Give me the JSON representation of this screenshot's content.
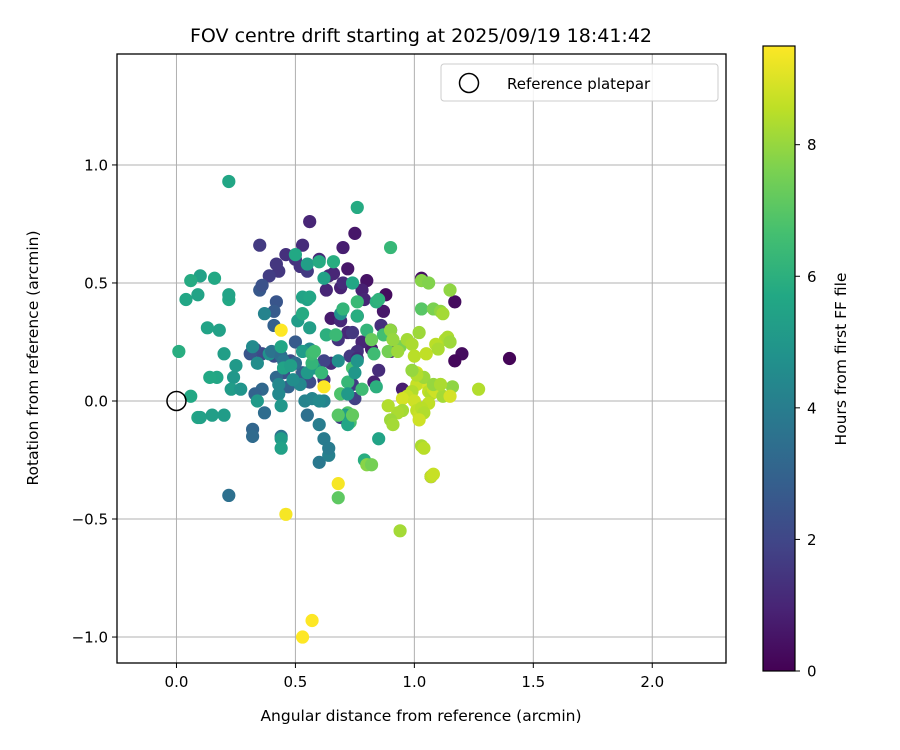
{
  "chart_data": {
    "type": "scatter",
    "title": "FOV centre drift starting at 2025/09/19 18:41:42",
    "xlabel": "Angular distance from reference (arcmin)",
    "ylabel": "Rotation from reference (arcmin)",
    "xlim": [
      -0.25,
      2.31
    ],
    "ylim": [
      -1.11,
      1.47
    ],
    "xticks": [
      0.0,
      0.5,
      1.0,
      1.5,
      2.0
    ],
    "xtick_labels": [
      "0.0",
      "0.5",
      "1.0",
      "1.5",
      "2.0"
    ],
    "yticks": [
      -1.0,
      -0.5,
      0.0,
      0.5,
      1.0
    ],
    "ytick_labels": [
      "−1.0",
      "−0.5",
      "0.0",
      "0.5",
      "1.0"
    ],
    "grid": true,
    "legend": {
      "position": "top-right",
      "entries": [
        "Reference platepar"
      ]
    },
    "reference_point": {
      "x": 0.0,
      "y": 0.0,
      "label": "Reference platepar"
    },
    "colorbar": {
      "label": "Hours from first FF file",
      "colormap": "viridis",
      "range": [
        0,
        9.5
      ],
      "ticks": [
        0,
        2,
        4,
        6,
        8
      ],
      "tick_labels": [
        "0",
        "2",
        "4",
        "6",
        "8"
      ]
    },
    "points": [
      [
        1.4,
        0.18,
        0.1
      ],
      [
        1.17,
        0.42,
        0.3
      ],
      [
        1.2,
        0.2,
        0.3
      ],
      [
        1.17,
        0.17,
        0.2
      ],
      [
        1.07,
        -0.32,
        0.2
      ],
      [
        1.03,
        0.52,
        0.4
      ],
      [
        0.9,
        0.3,
        0.3
      ],
      [
        0.88,
        0.45,
        0.3
      ],
      [
        0.8,
        0.51,
        0.5
      ],
      [
        0.75,
        0.71,
        0.6
      ],
      [
        0.7,
        0.65,
        0.8
      ],
      [
        0.56,
        0.76,
        1.0
      ],
      [
        0.65,
        0.35,
        0.7
      ],
      [
        0.69,
        0.48,
        0.9
      ],
      [
        0.72,
        0.56,
        0.6
      ],
      [
        0.78,
        0.47,
        0.9
      ],
      [
        0.82,
        0.22,
        0.7
      ],
      [
        0.87,
        0.38,
        0.6
      ],
      [
        0.83,
        0.08,
        0.9
      ],
      [
        0.78,
        0.25,
        1.0
      ],
      [
        0.72,
        0.29,
        1.1
      ],
      [
        0.76,
        0.36,
        0.8
      ],
      [
        0.63,
        0.47,
        1.0
      ],
      [
        0.6,
        0.6,
        1.1
      ],
      [
        0.53,
        0.66,
        1.2
      ],
      [
        0.46,
        0.62,
        1.3
      ],
      [
        0.5,
        0.6,
        1.4
      ],
      [
        0.43,
        0.55,
        1.5
      ],
      [
        0.35,
        0.66,
        1.6
      ],
      [
        0.39,
        0.53,
        1.7
      ],
      [
        0.42,
        0.58,
        1.5
      ],
      [
        0.52,
        0.57,
        1.4
      ],
      [
        0.55,
        0.55,
        1.6
      ],
      [
        0.64,
        0.53,
        1.2
      ],
      [
        0.76,
        0.21,
        1.3
      ],
      [
        0.65,
        0.16,
        1.2
      ],
      [
        0.62,
        0.09,
        1.4
      ],
      [
        0.68,
        0.26,
        1.4
      ],
      [
        0.69,
        0.34,
        1.1
      ],
      [
        0.66,
        0.54,
        1.0
      ],
      [
        0.7,
        0.5,
        1.2
      ],
      [
        0.74,
        0.29,
        1.5
      ],
      [
        0.73,
        0.19,
        1.6
      ],
      [
        0.76,
        0.18,
        1.1
      ],
      [
        0.79,
        0.43,
        1.0
      ],
      [
        0.86,
        0.32,
        1.3
      ],
      [
        0.9,
        0.21,
        1.0
      ],
      [
        0.95,
        0.05,
        0.8
      ],
      [
        0.85,
        0.13,
        1.2
      ],
      [
        0.74,
        0.07,
        1.7
      ],
      [
        0.69,
        -0.07,
        1.8
      ],
      [
        0.75,
        0.01,
        1.8
      ],
      [
        0.62,
        0.17,
        1.9
      ],
      [
        0.54,
        0.1,
        2.0
      ],
      [
        0.56,
        0.08,
        2.2
      ],
      [
        0.48,
        0.17,
        2.2
      ],
      [
        0.45,
        0.12,
        2.4
      ],
      [
        0.41,
        0.19,
        2.3
      ],
      [
        0.36,
        0.2,
        2.1
      ],
      [
        0.33,
        0.22,
        2.2
      ],
      [
        0.31,
        0.2,
        2.5
      ],
      [
        0.35,
        0.47,
        2.6
      ],
      [
        0.42,
        0.42,
        2.5
      ],
      [
        0.41,
        0.38,
        2.7
      ],
      [
        0.36,
        0.49,
        2.4
      ],
      [
        0.41,
        0.32,
        2.9
      ],
      [
        0.5,
        0.25,
        2.7
      ],
      [
        0.53,
        0.12,
        2.8
      ],
      [
        0.47,
        0.06,
        3.0
      ],
      [
        0.42,
        0.1,
        3.2
      ],
      [
        0.36,
        0.05,
        3.2
      ],
      [
        0.33,
        0.03,
        3.0
      ],
      [
        0.32,
        -0.12,
        3.1
      ],
      [
        0.32,
        -0.15,
        3.3
      ],
      [
        0.37,
        -0.05,
        3.4
      ],
      [
        0.22,
        -0.4,
        3.5
      ],
      [
        0.44,
        -0.15,
        3.6
      ],
      [
        0.55,
        -0.06,
        3.5
      ],
      [
        0.6,
        -0.26,
        3.8
      ],
      [
        0.62,
        -0.16,
        3.9
      ],
      [
        0.6,
        -0.1,
        4.0
      ],
      [
        0.64,
        -0.23,
        4.1
      ],
      [
        0.64,
        -0.2,
        3.9
      ],
      [
        0.62,
        0.0,
        4.2
      ],
      [
        0.54,
        0.0,
        4.2
      ],
      [
        0.52,
        0.07,
        4.4
      ],
      [
        0.49,
        0.09,
        4.6
      ],
      [
        0.43,
        0.03,
        4.4
      ],
      [
        0.39,
        0.2,
        4.8
      ],
      [
        0.37,
        0.37,
        4.2
      ],
      [
        0.4,
        0.21,
        3.6
      ],
      [
        0.44,
        0.19,
        3.4
      ],
      [
        0.45,
        0.17,
        3.7
      ],
      [
        0.5,
        0.16,
        3.3
      ],
      [
        0.56,
        0.22,
        4.5
      ],
      [
        0.58,
        0.14,
        5.0
      ],
      [
        0.55,
        0.12,
        5.1
      ],
      [
        0.53,
        0.21,
        5.2
      ],
      [
        0.56,
        0.31,
        5.3
      ],
      [
        0.55,
        0.43,
        5.4
      ],
      [
        0.51,
        0.34,
        5.2
      ],
      [
        0.53,
        0.44,
        5.5
      ],
      [
        0.56,
        0.44,
        5.6
      ],
      [
        0.55,
        0.58,
        5.3
      ],
      [
        0.5,
        0.62,
        5.7
      ],
      [
        0.6,
        0.59,
        5.8
      ],
      [
        0.66,
        0.59,
        5.9
      ],
      [
        0.62,
        0.52,
        5.4
      ],
      [
        0.74,
        0.5,
        5.6
      ],
      [
        0.76,
        0.82,
        5.8
      ],
      [
        0.84,
        0.42,
        6.0
      ],
      [
        0.85,
        0.43,
        6.1
      ],
      [
        0.9,
        0.65,
        6.3
      ],
      [
        0.76,
        0.42,
        6.4
      ],
      [
        0.8,
        0.3,
        6.2
      ],
      [
        0.83,
        0.2,
        6.5
      ],
      [
        0.87,
        0.28,
        6.6
      ],
      [
        0.78,
        0.05,
        6.5
      ],
      [
        0.74,
        0.14,
        6.7
      ],
      [
        0.72,
        0.08,
        6.3
      ],
      [
        0.69,
        0.03,
        6.8
      ],
      [
        0.72,
        -0.05,
        6.9
      ],
      [
        0.73,
        -0.09,
        6.7
      ],
      [
        0.68,
        -0.41,
        7.1
      ],
      [
        0.63,
        0.28,
        6.0
      ],
      [
        0.57,
        0.16,
        6.2
      ],
      [
        0.57,
        0.2,
        6.5
      ],
      [
        0.53,
        0.37,
        5.8
      ],
      [
        0.44,
        0.23,
        5.6
      ],
      [
        0.45,
        0.14,
        5.5
      ],
      [
        0.48,
        0.15,
        5.3
      ],
      [
        0.44,
        -0.02,
        5.0
      ],
      [
        0.44,
        -0.16,
        5.2
      ],
      [
        0.44,
        -0.2,
        5.4
      ],
      [
        0.34,
        0.0,
        5.1
      ],
      [
        0.24,
        0.1,
        5.0
      ],
      [
        0.25,
        0.15,
        5.1
      ],
      [
        0.23,
        0.05,
        5.2
      ],
      [
        0.22,
        0.43,
        5.7
      ],
      [
        0.22,
        0.45,
        5.5
      ],
      [
        0.22,
        0.93,
        5.6
      ],
      [
        0.16,
        0.52,
        5.7
      ],
      [
        0.18,
        0.3,
        5.4
      ],
      [
        0.2,
        0.2,
        5.3
      ],
      [
        0.17,
        0.1,
        5.6
      ],
      [
        0.14,
        0.1,
        5.7
      ],
      [
        0.13,
        0.31,
        5.5
      ],
      [
        0.1,
        0.53,
        5.4
      ],
      [
        0.09,
        0.45,
        5.5
      ],
      [
        0.06,
        0.51,
        5.8
      ],
      [
        0.04,
        0.43,
        5.6
      ],
      [
        0.01,
        0.21,
        5.9
      ],
      [
        0.06,
        0.02,
        5.7
      ],
      [
        0.09,
        -0.07,
        5.6
      ],
      [
        0.1,
        -0.07,
        5.4
      ],
      [
        0.15,
        -0.06,
        5.3
      ],
      [
        0.2,
        -0.06,
        5.2
      ],
      [
        0.27,
        0.05,
        4.9
      ],
      [
        0.32,
        0.23,
        4.5
      ],
      [
        0.34,
        0.16,
        4.6
      ],
      [
        0.43,
        0.07,
        4.4
      ],
      [
        0.57,
        0.01,
        4.3
      ],
      [
        0.6,
        0.0,
        4.5
      ],
      [
        0.68,
        0.17,
        4.6
      ],
      [
        0.69,
        0.37,
        4.8
      ],
      [
        0.76,
        0.17,
        4.9
      ],
      [
        0.75,
        0.12,
        5.0
      ],
      [
        0.72,
        0.03,
        5.1
      ],
      [
        0.71,
        -0.06,
        5.3
      ],
      [
        0.72,
        -0.1,
        5.6
      ],
      [
        0.79,
        -0.25,
        5.9
      ],
      [
        0.85,
        -0.16,
        5.5
      ],
      [
        0.84,
        0.06,
        6.0
      ],
      [
        0.76,
        0.36,
        5.9
      ],
      [
        0.7,
        0.39,
        6.2
      ],
      [
        0.67,
        0.28,
        6.4
      ],
      [
        0.61,
        0.12,
        6.3
      ],
      [
        0.58,
        0.21,
        6.6
      ],
      [
        0.68,
        -0.06,
        7.0
      ],
      [
        0.74,
        -0.06,
        7.2
      ],
      [
        0.8,
        -0.27,
        7.8
      ],
      [
        0.82,
        -0.27,
        7.5
      ],
      [
        0.82,
        0.26,
        7.3
      ],
      [
        0.89,
        0.21,
        7.5
      ],
      [
        0.94,
        0.23,
        7.6
      ],
      [
        0.9,
        0.3,
        7.9
      ],
      [
        0.91,
        0.26,
        8.0
      ],
      [
        0.93,
        0.21,
        8.1
      ],
      [
        0.97,
        0.26,
        8.2
      ],
      [
        0.99,
        0.24,
        8.3
      ],
      [
        1.0,
        0.19,
        8.5
      ],
      [
        1.02,
        0.29,
        8.1
      ],
      [
        1.03,
        0.39,
        7.0
      ],
      [
        1.03,
        0.51,
        7.8
      ],
      [
        1.06,
        0.5,
        7.7
      ],
      [
        1.08,
        0.39,
        7.6
      ],
      [
        1.11,
        0.38,
        7.9
      ],
      [
        1.12,
        0.37,
        8.2
      ],
      [
        1.13,
        0.26,
        8.4
      ],
      [
        1.14,
        0.27,
        8.3
      ],
      [
        1.15,
        0.25,
        8.1
      ],
      [
        1.15,
        0.47,
        7.9
      ],
      [
        1.09,
        0.24,
        8.5
      ],
      [
        1.05,
        0.2,
        8.6
      ],
      [
        1.1,
        0.22,
        8.3
      ],
      [
        1.01,
        0.12,
        8.8
      ],
      [
        1.03,
        0.09,
        8.5
      ],
      [
        1.01,
        0.07,
        8.7
      ],
      [
        1.06,
        0.06,
        8.9
      ],
      [
        1.06,
        0.04,
        8.6
      ],
      [
        1.07,
        0.03,
        8.4
      ],
      [
        1.08,
        0.05,
        8.7
      ],
      [
        1.09,
        0.04,
        8.8
      ],
      [
        1.11,
        0.07,
        8.5
      ],
      [
        1.06,
        -0.01,
        8.6
      ],
      [
        0.99,
        0.04,
        8.4
      ],
      [
        0.97,
        0.02,
        8.7
      ],
      [
        0.95,
        0.01,
        8.9
      ],
      [
        1.0,
        0.0,
        8.8
      ],
      [
        1.01,
        -0.04,
        8.6
      ],
      [
        1.02,
        -0.06,
        8.7
      ],
      [
        1.03,
        -0.03,
        8.5
      ],
      [
        1.04,
        -0.05,
        8.4
      ],
      [
        1.04,
        0.1,
        8.1
      ],
      [
        1.08,
        0.07,
        8.0
      ],
      [
        1.12,
        0.02,
        8.2
      ],
      [
        1.16,
        0.06,
        7.9
      ],
      [
        1.11,
        0.07,
        8.3
      ],
      [
        1.01,
        0.11,
        8.4
      ],
      [
        0.99,
        0.13,
        8.0
      ],
      [
        0.95,
        -0.04,
        8.2
      ],
      [
        0.93,
        -0.05,
        8.3
      ],
      [
        0.89,
        -0.02,
        8.4
      ],
      [
        0.9,
        -0.08,
        8.1
      ],
      [
        0.91,
        -0.1,
        8.2
      ],
      [
        1.03,
        -0.19,
        8.3
      ],
      [
        1.04,
        -0.2,
        8.5
      ],
      [
        1.07,
        -0.32,
        8.6
      ],
      [
        1.08,
        -0.31,
        8.7
      ],
      [
        1.02,
        -0.08,
        8.8
      ],
      [
        1.15,
        0.02,
        8.9
      ],
      [
        1.27,
        0.05,
        8.4
      ],
      [
        0.94,
        -0.55,
        8.2
      ],
      [
        0.68,
        -0.35,
        9.4
      ],
      [
        0.57,
        -0.93,
        9.5
      ],
      [
        0.53,
        -1.0,
        9.5
      ],
      [
        0.46,
        -0.48,
        9.4
      ],
      [
        0.44,
        0.3,
        9.5
      ],
      [
        0.62,
        0.06,
        9.5
      ]
    ]
  }
}
